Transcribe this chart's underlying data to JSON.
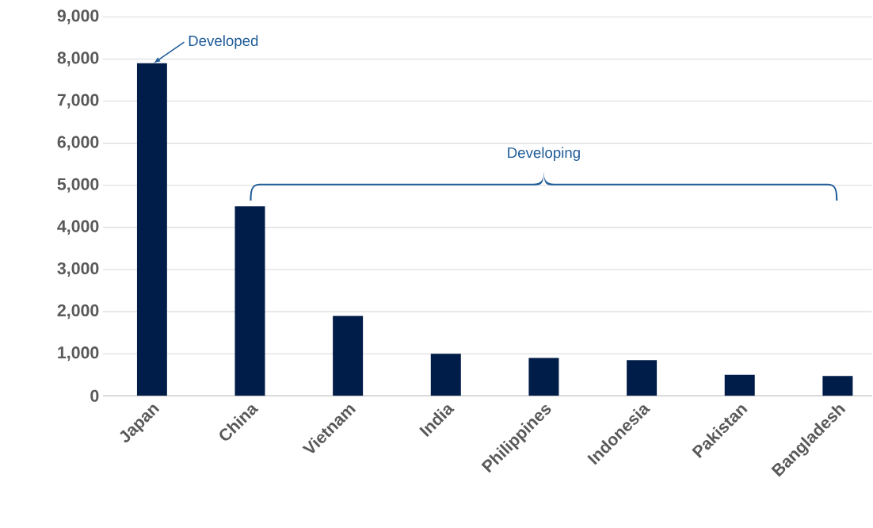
{
  "chart_data": {
    "type": "bar",
    "categories": [
      "Japan",
      "China",
      "Vietnam",
      "India",
      "Philippines",
      "Indonesia",
      "Pakistan",
      "Bangladesh"
    ],
    "values": [
      7900,
      4500,
      1900,
      1000,
      900,
      850,
      500,
      470
    ],
    "color": "#001c48",
    "ylim": [
      0,
      9000
    ],
    "yticks": [
      {
        "value": 0,
        "label": "0"
      },
      {
        "value": 1000,
        "label": "1,000"
      },
      {
        "value": 2000,
        "label": "2,000"
      },
      {
        "value": 3000,
        "label": "3,000"
      },
      {
        "value": 4000,
        "label": "4,000"
      },
      {
        "value": 5000,
        "label": "5,000"
      },
      {
        "value": 6000,
        "label": "6,000"
      },
      {
        "value": 7000,
        "label": "7,000"
      },
      {
        "value": 8000,
        "label": "8,000"
      },
      {
        "value": 9000,
        "label": "9,000"
      }
    ],
    "grid": "y",
    "annotations": [
      {
        "text": "Developed",
        "x": "Japan",
        "y": 7900
      },
      "Developing"
    ]
  }
}
